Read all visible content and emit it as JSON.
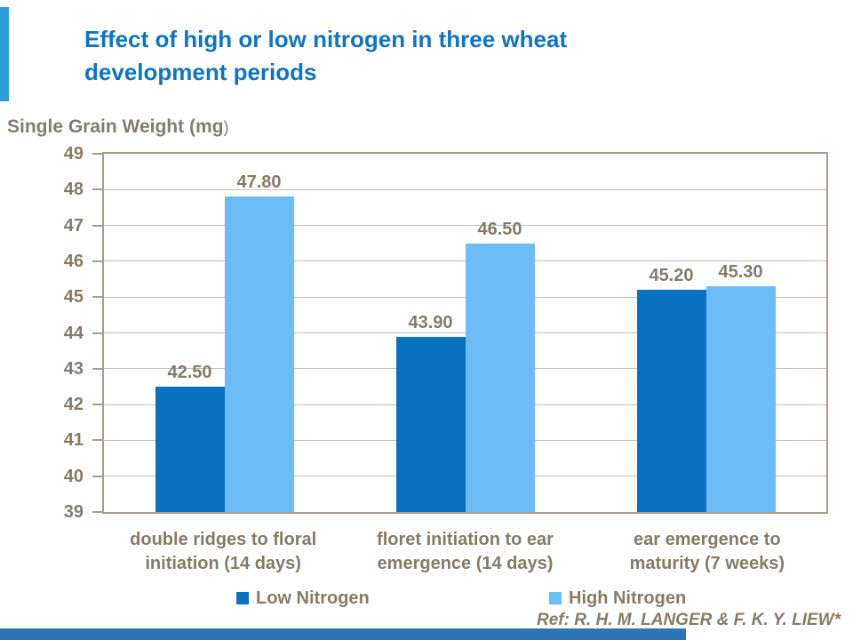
{
  "slide": {
    "title_lines": [
      "Effect of high or low nitrogen in three wheat",
      "development periods"
    ],
    "reference": "Ref: R. H. M. LANGER & F. K. Y. LIEW*"
  },
  "chart_data": {
    "type": "bar",
    "title": "Effect of high or low nitrogen in three wheat development periods",
    "axis_title_bold": "Single Grain Weight (mg",
    "axis_title_close": ")",
    "ylabel": "Single Grain Weight (mg)",
    "xlabel": "",
    "categories": [
      [
        "double ridges to floral",
        "initiation (14 days)"
      ],
      [
        "floret initiation to ear",
        "emergence (14 days)"
      ],
      [
        "ear emergence to",
        "maturity (7 weeks)"
      ]
    ],
    "series": [
      {
        "name": "Low Nitrogen",
        "color": "#0a70c0",
        "values": [
          42.5,
          43.9,
          45.2
        ],
        "value_labels": [
          "42.50",
          "43.90",
          "45.20"
        ]
      },
      {
        "name": "High Nitrogen",
        "color": "#6cbdf5",
        "values": [
          47.8,
          46.5,
          45.3
        ],
        "value_labels": [
          "47.80",
          "46.50",
          "45.30"
        ]
      }
    ],
    "ylim": [
      39,
      49
    ],
    "ytick_labels": [
      "49",
      "48",
      "47",
      "46",
      "45",
      "44",
      "43",
      "42",
      "41",
      "40",
      "39"
    ],
    "grid": true,
    "legend_position": "bottom"
  },
  "colors": {
    "title_blue": "#0e74c4",
    "text_brown": "#8a7963",
    "gridline": "#c6beb3",
    "plot_border": "#a99c89",
    "decor_left_bar": "#2e9bd6",
    "decor_bottom_bar": "#2e75b6"
  }
}
